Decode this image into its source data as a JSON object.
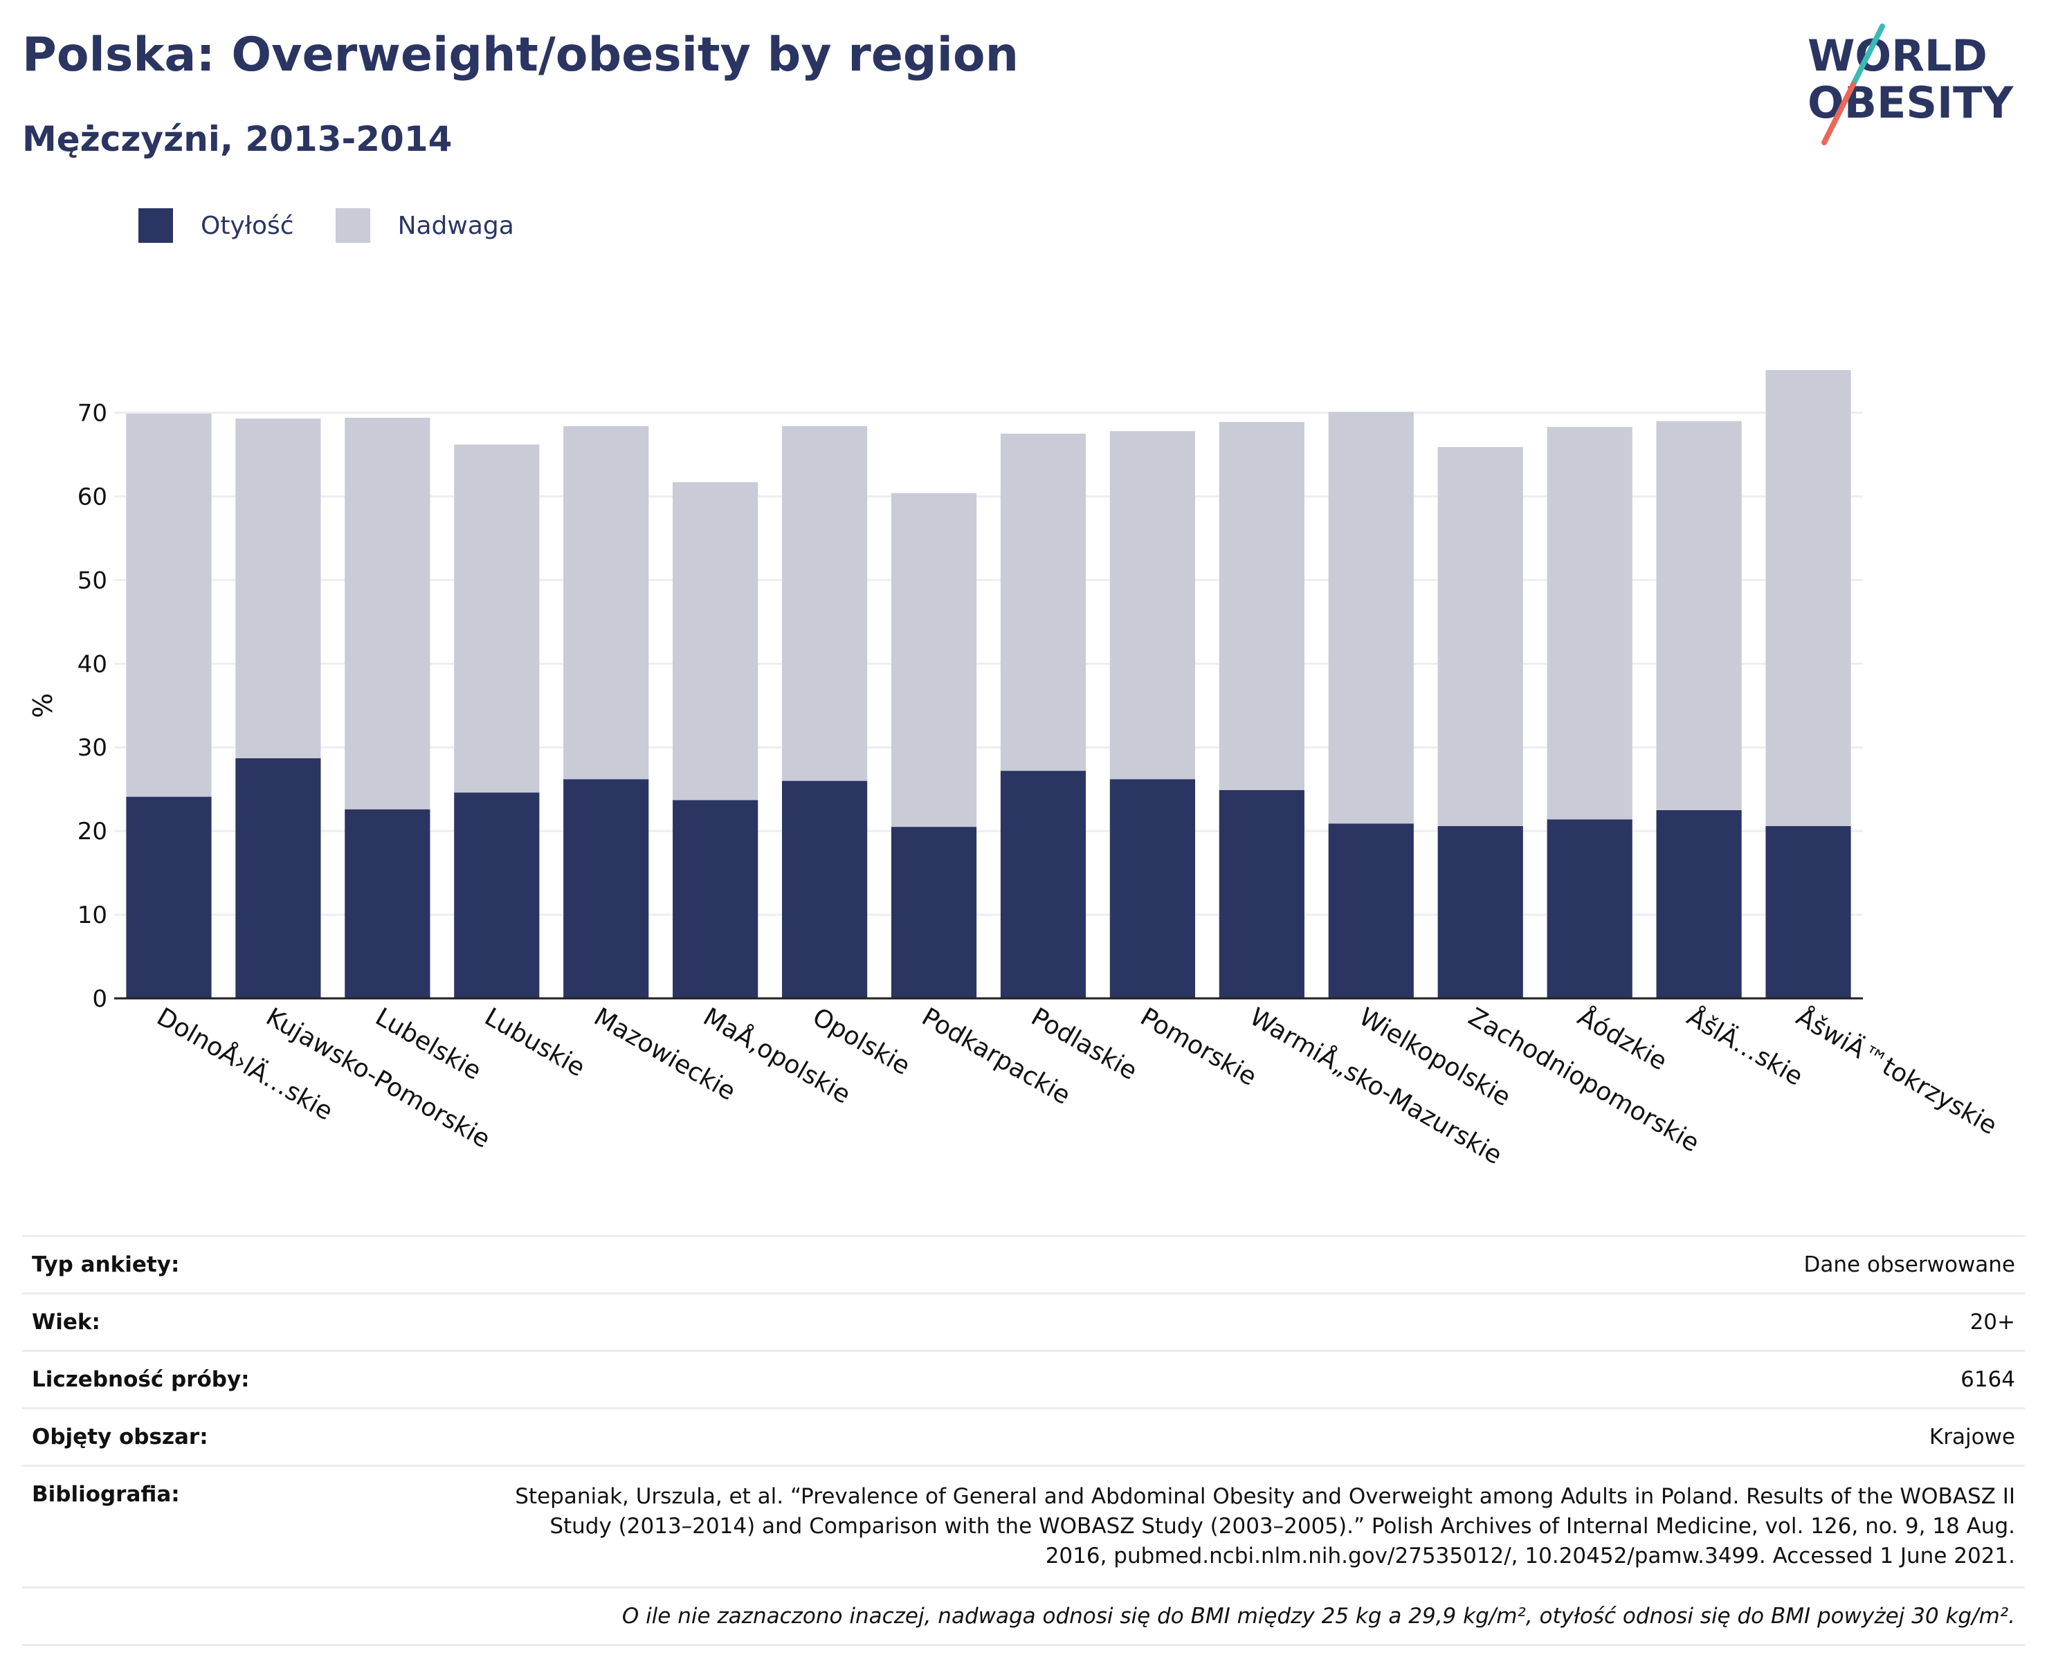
{
  "header": {
    "title": "Polska: Overweight/obesity by region",
    "subtitle": "Mężczyźni, 2013-2014"
  },
  "logo": {
    "line1": "WORLD",
    "line2": "OBESITY",
    "accent_teal": "#3bb9b6",
    "accent_coral": "#e8685a",
    "text_color": "#2b3562"
  },
  "legend": [
    {
      "label": "Otyłość",
      "color": "#2b3562"
    },
    {
      "label": "Nadwaga",
      "color": "#c9cbd7"
    }
  ],
  "chart_data": {
    "type": "bar",
    "stacked": true,
    "ylabel": "%",
    "ylim": [
      0,
      76
    ],
    "yticks": [
      0,
      10,
      20,
      30,
      40,
      50,
      60,
      70
    ],
    "grid": true,
    "legend_position": "top-left",
    "categories": [
      "DolnoÅ›lÄ…skie",
      "Kujawsko-Pomorskie",
      "Lubelskie",
      "Lubuskie",
      "Mazowieckie",
      "MaÅ‚opolskie",
      "Opolskie",
      "Podkarpackie",
      "Podlaskie",
      "Pomorskie",
      "WarmiÅ„sko-Mazurskie",
      "Wielkopolskie",
      "Zachodniopomorskie",
      "Å\u001dódzkie",
      "ÅšlÄ…skie",
      "ÅšwiÄ™tokrzyskie"
    ],
    "series": [
      {
        "name": "Otyłość",
        "color": "#2b3562",
        "values": [
          24.1,
          28.7,
          22.6,
          24.6,
          26.2,
          23.7,
          26.0,
          20.5,
          27.2,
          26.2,
          24.9,
          20.9,
          20.6,
          21.4,
          22.5,
          20.6
        ]
      },
      {
        "name": "Nadwaga",
        "color": "#c9cbd7",
        "values": [
          45.8,
          40.6,
          46.8,
          41.6,
          42.2,
          38.0,
          42.4,
          39.9,
          40.3,
          41.6,
          44.0,
          49.2,
          45.3,
          46.9,
          46.5,
          54.5
        ]
      }
    ]
  },
  "meta": {
    "rows": [
      {
        "key": "Typ ankiety:",
        "value": "Dane obserwowane"
      },
      {
        "key": "Wiek:",
        "value": "20+"
      },
      {
        "key": "Liczebność próby:",
        "value": "6164"
      },
      {
        "key": "Objęty obszar:",
        "value": "Krajowe"
      }
    ],
    "bibliography_key": "Bibliografia:",
    "bibliography_value": "Stepaniak, Urszula, et al. “Prevalence of General and Abdominal Obesity and Overweight among Adults in Poland. Results of the WOBASZ II Study (2013–2014) and Comparison with the WOBASZ Study (2003–2005).” Polish Archives of Internal Medicine, vol. 126, no. 9, 18 Aug. 2016, pubmed.ncbi.nlm.nih.gov/27535012/, 10.20452/pamw.3499. Accessed 1 June 2021.",
    "footnote": "O ile nie zaznaczono inaczej, nadwaga odnosi się do BMI między 25 kg a 29,9 kg/m², otyłość odnosi się do BMI powyżej 30 kg/m²."
  }
}
